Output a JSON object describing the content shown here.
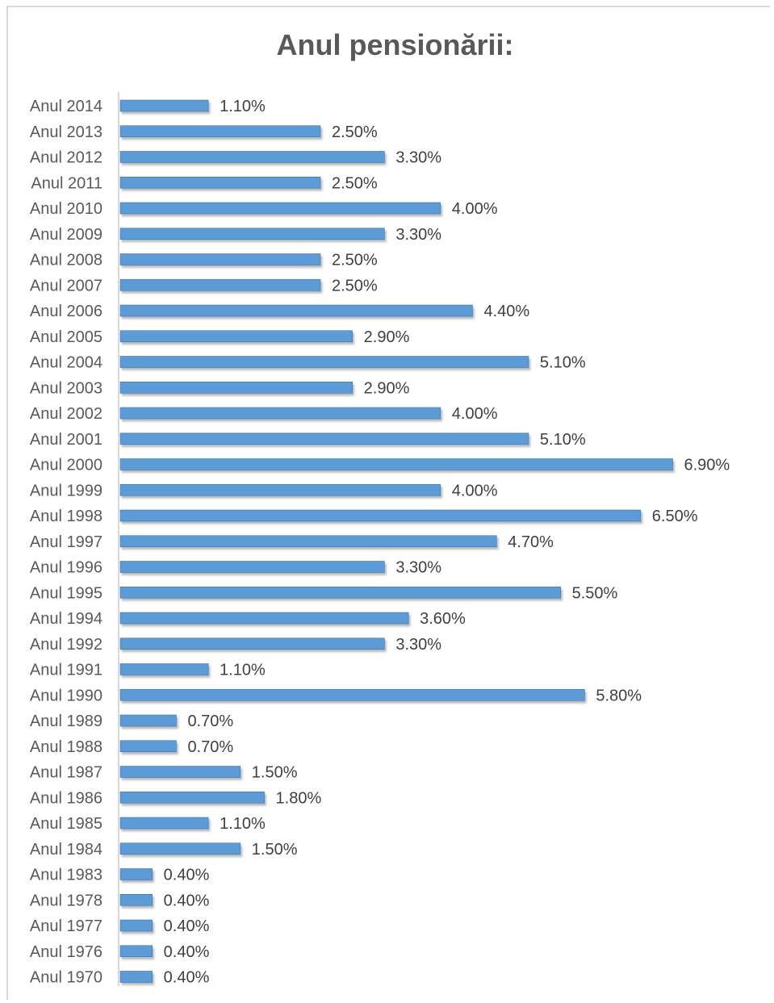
{
  "chart_data": {
    "type": "bar",
    "orientation": "horizontal",
    "title": "Anul pensionării:",
    "categories": [
      "Anul 2014",
      "Anul 2013",
      "Anul 2012",
      "Anul 2011",
      "Anul 2010",
      "Anul 2009",
      "Anul 2008",
      "Anul 2007",
      "Anul 2006",
      "Anul 2005",
      "Anul 2004",
      "Anul 2003",
      "Anul 2002",
      "Anul 2001",
      "Anul 2000",
      "Anul 1999",
      "Anul 1998",
      "Anul 1997",
      "Anul 1996",
      "Anul 1995",
      "Anul 1994",
      "Anul 1992",
      "Anul 1991",
      "Anul 1990",
      "Anul 1989",
      "Anul 1988",
      "Anul 1987",
      "Anul 1986",
      "Anul 1985",
      "Anul 1984",
      "Anul 1983",
      "Anul 1978",
      "Anul 1977",
      "Anul 1976",
      "Anul 1970"
    ],
    "values": [
      1.1,
      2.5,
      3.3,
      2.5,
      4.0,
      3.3,
      2.5,
      2.5,
      4.4,
      2.9,
      5.1,
      2.9,
      4.0,
      5.1,
      6.9,
      4.0,
      6.5,
      4.7,
      3.3,
      5.5,
      3.6,
      3.3,
      1.1,
      5.8,
      0.7,
      0.7,
      1.5,
      1.8,
      1.1,
      1.5,
      0.4,
      0.4,
      0.4,
      0.4,
      0.4
    ],
    "data_labels": [
      "1.10%",
      "2.50%",
      "3.30%",
      "2.50%",
      "4.00%",
      "3.30%",
      "2.50%",
      "2.50%",
      "4.40%",
      "2.90%",
      "5.10%",
      "2.90%",
      "4.00%",
      "5.10%",
      "6.90%",
      "4.00%",
      "6.50%",
      "4.70%",
      "3.30%",
      "5.50%",
      "3.60%",
      "3.30%",
      "1.10%",
      "5.80%",
      "0.70%",
      "0.70%",
      "1.50%",
      "1.80%",
      "1.10%",
      "1.50%",
      "0.40%",
      "0.40%",
      "0.40%",
      "0.40%",
      "0.40%"
    ],
    "value_unit": "%",
    "xlim": [
      0,
      7
    ],
    "grid": false,
    "legend": "none",
    "bar_color": "#5b9bd5",
    "bar_edge_color": "#3a74b0",
    "axis_color": "#d9d9d9"
  }
}
